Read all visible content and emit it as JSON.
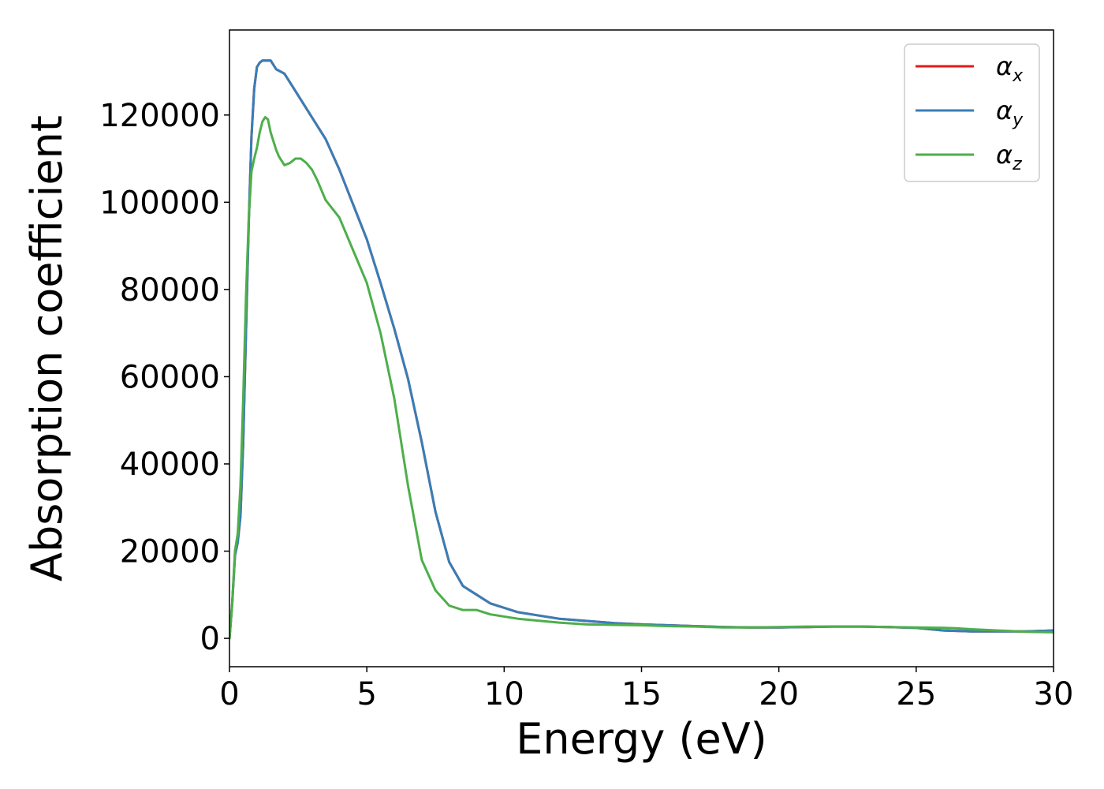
{
  "chart_data": {
    "type": "line",
    "title": "",
    "xlabel": "Energy (eV)",
    "ylabel": "Absorption coefficient",
    "xlim": [
      0,
      30
    ],
    "ylim": [
      -6500,
      139500
    ],
    "xticks": [
      0,
      5,
      10,
      15,
      20,
      25,
      30
    ],
    "yticks": [
      0,
      20000,
      40000,
      60000,
      80000,
      100000,
      120000
    ],
    "grid": false,
    "legend_position": "top-right",
    "series": [
      {
        "name": "α_x",
        "legend_symbol": "α",
        "legend_sub": "x",
        "color": "#e41a1c",
        "x": [
          0,
          0.1,
          0.2,
          0.3,
          0.4,
          0.5,
          0.6,
          0.7,
          0.8,
          0.9,
          1.0,
          1.1,
          1.2,
          1.3,
          1.5,
          1.7,
          2.0,
          2.3,
          2.6,
          3.0,
          3.5,
          4.0,
          4.5,
          5.0,
          5.5,
          6.0,
          6.5,
          7.0,
          7.5,
          8.0,
          8.5,
          9.0,
          9.5,
          10.0,
          10.5,
          11.0,
          12.0,
          13.0,
          14.0,
          15.0,
          16.0,
          17.0,
          18.0,
          19.0,
          20.0,
          21.0,
          22.0,
          23.0,
          24.0,
          25.0,
          26.0,
          27.0,
          28.0,
          29.0,
          30.0
        ],
        "y": [
          0,
          8000,
          19000,
          22000,
          28000,
          45000,
          70000,
          95000,
          115000,
          126000,
          131000,
          132000,
          132500,
          132500,
          132500,
          130500,
          129500,
          126500,
          123500,
          119500,
          114500,
          107500,
          99500,
          91500,
          81500,
          71000,
          59500,
          45000,
          29000,
          17500,
          12000,
          10000,
          8000,
          7000,
          6000,
          5500,
          4500,
          4000,
          3500,
          3200,
          3000,
          2800,
          2600,
          2500,
          2500,
          2600,
          2700,
          2700,
          2600,
          2400,
          1800,
          1600,
          1600,
          1600,
          1800
        ]
      },
      {
        "name": "α_y",
        "legend_symbol": "α",
        "legend_sub": "y",
        "color": "#377eb8",
        "x": [
          0,
          0.1,
          0.2,
          0.3,
          0.4,
          0.5,
          0.6,
          0.7,
          0.8,
          0.9,
          1.0,
          1.1,
          1.2,
          1.3,
          1.5,
          1.7,
          2.0,
          2.3,
          2.6,
          3.0,
          3.5,
          4.0,
          4.5,
          5.0,
          5.5,
          6.0,
          6.5,
          7.0,
          7.5,
          8.0,
          8.5,
          9.0,
          9.5,
          10.0,
          10.5,
          11.0,
          12.0,
          13.0,
          14.0,
          15.0,
          16.0,
          17.0,
          18.0,
          19.0,
          20.0,
          21.0,
          22.0,
          23.0,
          24.0,
          25.0,
          26.0,
          27.0,
          28.0,
          29.0,
          30.0
        ],
        "y": [
          0,
          8000,
          19000,
          22000,
          28000,
          45000,
          70000,
          95000,
          115000,
          126000,
          131000,
          132000,
          132500,
          132500,
          132500,
          130500,
          129500,
          126500,
          123500,
          119500,
          114500,
          107500,
          99500,
          91500,
          81500,
          71000,
          59500,
          45000,
          29000,
          17500,
          12000,
          10000,
          8000,
          7000,
          6000,
          5500,
          4500,
          4000,
          3500,
          3200,
          3000,
          2800,
          2600,
          2500,
          2500,
          2600,
          2700,
          2700,
          2600,
          2400,
          1800,
          1600,
          1600,
          1600,
          1800
        ]
      },
      {
        "name": "α_z",
        "legend_symbol": "α",
        "legend_sub": "z",
        "color": "#4daf4a",
        "x": [
          0,
          0.1,
          0.2,
          0.3,
          0.4,
          0.5,
          0.6,
          0.7,
          0.8,
          0.9,
          1.0,
          1.1,
          1.2,
          1.3,
          1.4,
          1.5,
          1.6,
          1.7,
          1.8,
          2.0,
          2.2,
          2.4,
          2.6,
          2.8,
          3.0,
          3.2,
          3.5,
          4.0,
          4.5,
          5.0,
          5.5,
          6.0,
          6.5,
          7.0,
          7.5,
          8.0,
          8.5,
          9.0,
          9.5,
          10.0,
          10.5,
          11.0,
          12.0,
          13.0,
          14.0,
          15.0,
          16.0,
          17.0,
          18.0,
          19.0,
          20.0,
          21.0,
          22.0,
          23.0,
          24.0,
          25.0,
          26.0,
          26.5,
          27.0,
          28.0,
          29.0,
          30.0
        ],
        "y": [
          0,
          8000,
          20000,
          24000,
          35000,
          55000,
          78000,
          96000,
          107000,
          110000,
          112500,
          116000,
          118500,
          119500,
          119000,
          116000,
          114000,
          112000,
          110500,
          108500,
          109000,
          110000,
          110000,
          109000,
          107500,
          105000,
          100500,
          96500,
          89000,
          81500,
          70000,
          55000,
          35000,
          18000,
          11000,
          7500,
          6500,
          6500,
          5500,
          5000,
          4500,
          4200,
          3600,
          3200,
          3100,
          3000,
          2800,
          2700,
          2500,
          2500,
          2600,
          2700,
          2700,
          2700,
          2600,
          2500,
          2400,
          2300,
          2100,
          1800,
          1500,
          1400
        ]
      }
    ]
  }
}
